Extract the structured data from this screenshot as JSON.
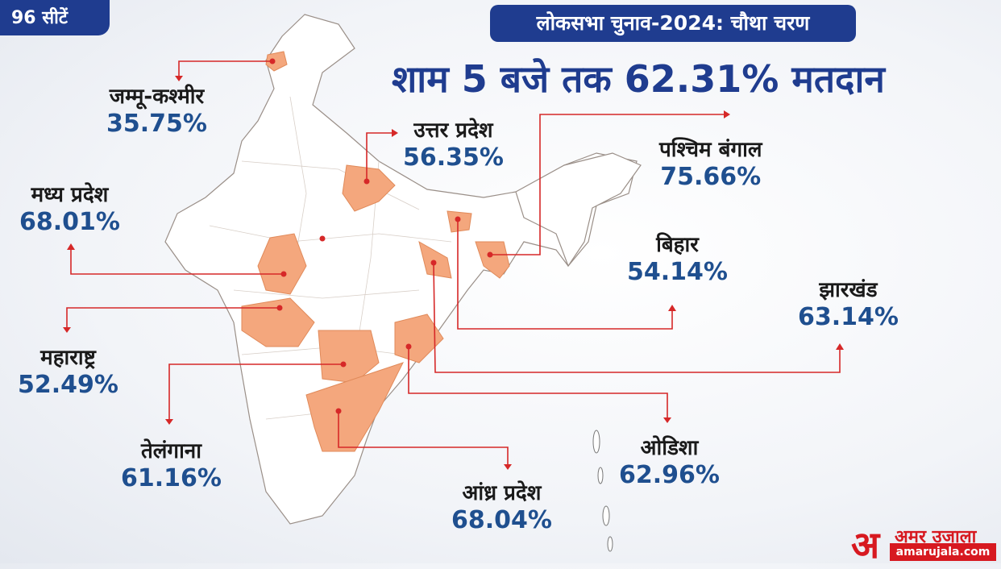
{
  "seat_tag": "96 सीटें",
  "phase_title": "लोकसभा चुनाव-2024: चौथा चरण",
  "headline": "शाम 5 बजे तक 62.31% मतदान",
  "colors": {
    "brand_blue": "#1f3c8f",
    "highlight_state": "#f4a77d",
    "connector": "#d62828",
    "logo_red": "#d71920"
  },
  "states": [
    {
      "name": "जम्मू-कश्मीर",
      "turnout": "35.75%"
    },
    {
      "name": "उत्तर प्रदेश",
      "turnout": "56.35%"
    },
    {
      "name": "पश्चिम बंगाल",
      "turnout": "75.66%"
    },
    {
      "name": "मध्य प्रदेश",
      "turnout": "68.01%"
    },
    {
      "name": "बिहार",
      "turnout": "54.14%"
    },
    {
      "name": "झारखंड",
      "turnout": "63.14%"
    },
    {
      "name": "महाराष्ट्र",
      "turnout": "52.49%"
    },
    {
      "name": "तेलंगाना",
      "turnout": "61.16%"
    },
    {
      "name": "ओडिशा",
      "turnout": "62.96%"
    },
    {
      "name": "आंध्र प्रदेश",
      "turnout": "68.04%"
    }
  ],
  "logo": {
    "brand": "अमर उजाला",
    "url": "amarujala.com"
  }
}
